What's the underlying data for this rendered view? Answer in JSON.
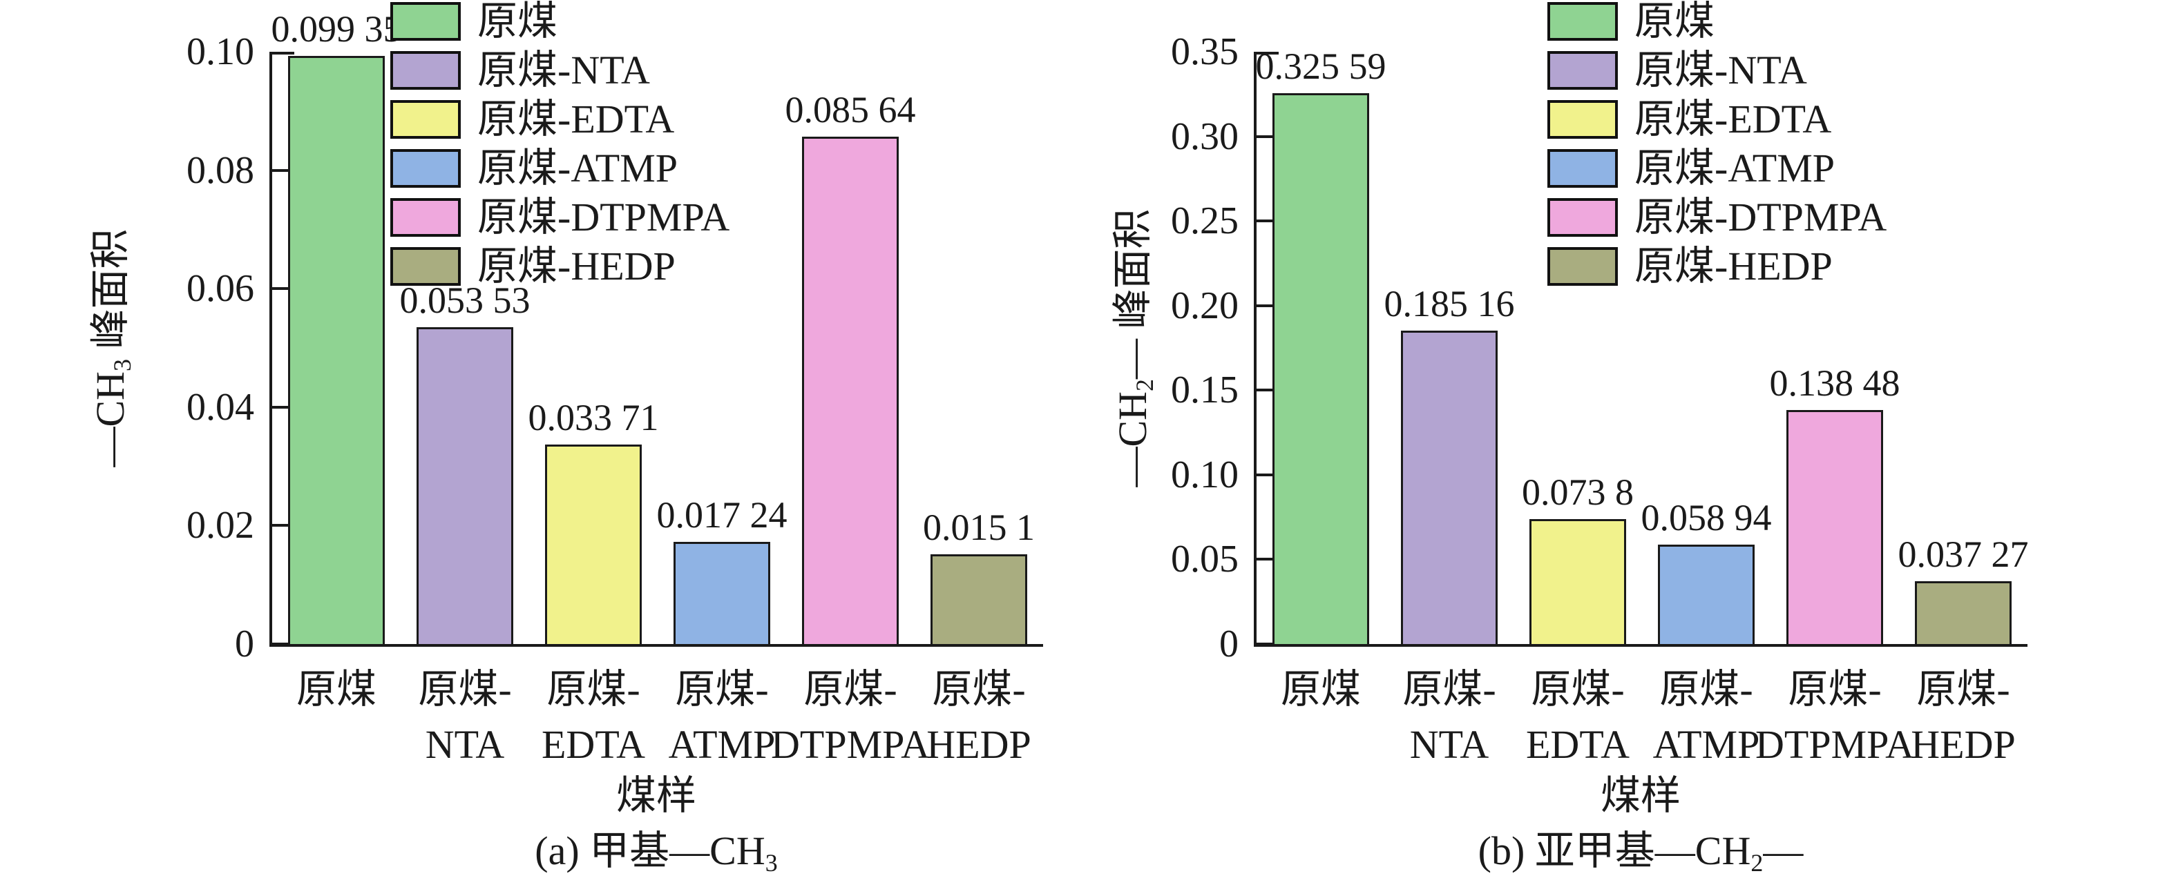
{
  "figure": {
    "background": "#ffffff",
    "text_color": "#1a1a1a",
    "axis_color": "#1a1a1a"
  },
  "legend": {
    "items": [
      {
        "label": "原煤",
        "color": "#8FD392"
      },
      {
        "label": "原煤-NTA",
        "color": "#B3A4D1"
      },
      {
        "label": "原煤-EDTA",
        "color": "#F1F28C"
      },
      {
        "label": "原煤-ATMP",
        "color": "#8FB3E4"
      },
      {
        "label": "原煤-DTPMPA",
        "color": "#EFA8DD"
      },
      {
        "label": "原煤-HEDP",
        "color": "#A9AD80"
      }
    ]
  },
  "chart_data": [
    {
      "type": "bar",
      "panel": "a",
      "caption": "(a) 甲基—CH3",
      "caption_parts": {
        "pre": "(a) 甲基—CH",
        "sub": "3",
        "post": ""
      },
      "ylabel": "—CH3 峰面积",
      "ylabel_parts": {
        "pre": "—CH",
        "sub": "3",
        "post": " 峰面积"
      },
      "xlabel": "煤样",
      "categories": [
        "原煤",
        "原煤-NTA",
        "原煤-EDTA",
        "原煤-ATMP",
        "原煤-DTPMPA",
        "原煤-HEDP"
      ],
      "category_lines": [
        [
          "原煤",
          ""
        ],
        [
          "原煤-",
          "NTA"
        ],
        [
          "原煤-",
          "EDTA"
        ],
        [
          "原煤-",
          "ATMP"
        ],
        [
          "原煤-",
          "DTPMPA"
        ],
        [
          "原煤-",
          "HEDP"
        ]
      ],
      "values": [
        0.09935,
        0.05353,
        0.03371,
        0.01724,
        0.08564,
        0.0151
      ],
      "value_labels": [
        "0.099 35",
        "0.053 53",
        "0.033 71",
        "0.017 24",
        "0.085 64",
        "0.015 1"
      ],
      "bar_colors": [
        "#8FD392",
        "#B3A4D1",
        "#F1F28C",
        "#8FB3E4",
        "#EFA8DD",
        "#A9AD80"
      ],
      "ylim": [
        0,
        0.1
      ],
      "yticks": [
        0,
        0.02,
        0.04,
        0.06,
        0.08,
        0.1
      ],
      "ytick_labels": [
        "0",
        "0.02",
        "0.04",
        "0.06",
        "0.08",
        "0.10"
      ],
      "grid": false,
      "legend_position": "upper-inside"
    },
    {
      "type": "bar",
      "panel": "b",
      "caption": "(b) 亚甲基—CH2—",
      "caption_parts": {
        "pre": "(b) 亚甲基—CH",
        "sub": "2",
        "post": "—"
      },
      "ylabel": "—CH2— 峰面积",
      "ylabel_parts": {
        "pre": "—CH",
        "sub": "2",
        "post": "— 峰面积"
      },
      "xlabel": "煤样",
      "categories": [
        "原煤",
        "原煤-NTA",
        "原煤-EDTA",
        "原煤-ATMP",
        "原煤-DTPMPA",
        "原煤-HEDP"
      ],
      "category_lines": [
        [
          "原煤",
          ""
        ],
        [
          "原煤-",
          "NTA"
        ],
        [
          "原煤-",
          "EDTA"
        ],
        [
          "原煤-",
          "ATMP"
        ],
        [
          "原煤-",
          "DTPMPA"
        ],
        [
          "原煤-",
          "HEDP"
        ]
      ],
      "values": [
        0.32559,
        0.18516,
        0.0738,
        0.05894,
        0.13848,
        0.03727
      ],
      "value_labels": [
        "0.325 59",
        "0.185 16",
        "0.073 8",
        "0.058 94",
        "0.138 48",
        "0.037 27"
      ],
      "bar_colors": [
        "#8FD392",
        "#B3A4D1",
        "#F1F28C",
        "#8FB3E4",
        "#EFA8DD",
        "#A9AD80"
      ],
      "ylim": [
        0,
        0.35
      ],
      "yticks": [
        0,
        0.05,
        0.1,
        0.15,
        0.2,
        0.25,
        0.3,
        0.35
      ],
      "ytick_labels": [
        "0",
        "0.05",
        "0.10",
        "0.15",
        "0.20",
        "0.25",
        "0.30",
        "0.35"
      ],
      "grid": false,
      "legend_position": "upper-inside"
    }
  ]
}
